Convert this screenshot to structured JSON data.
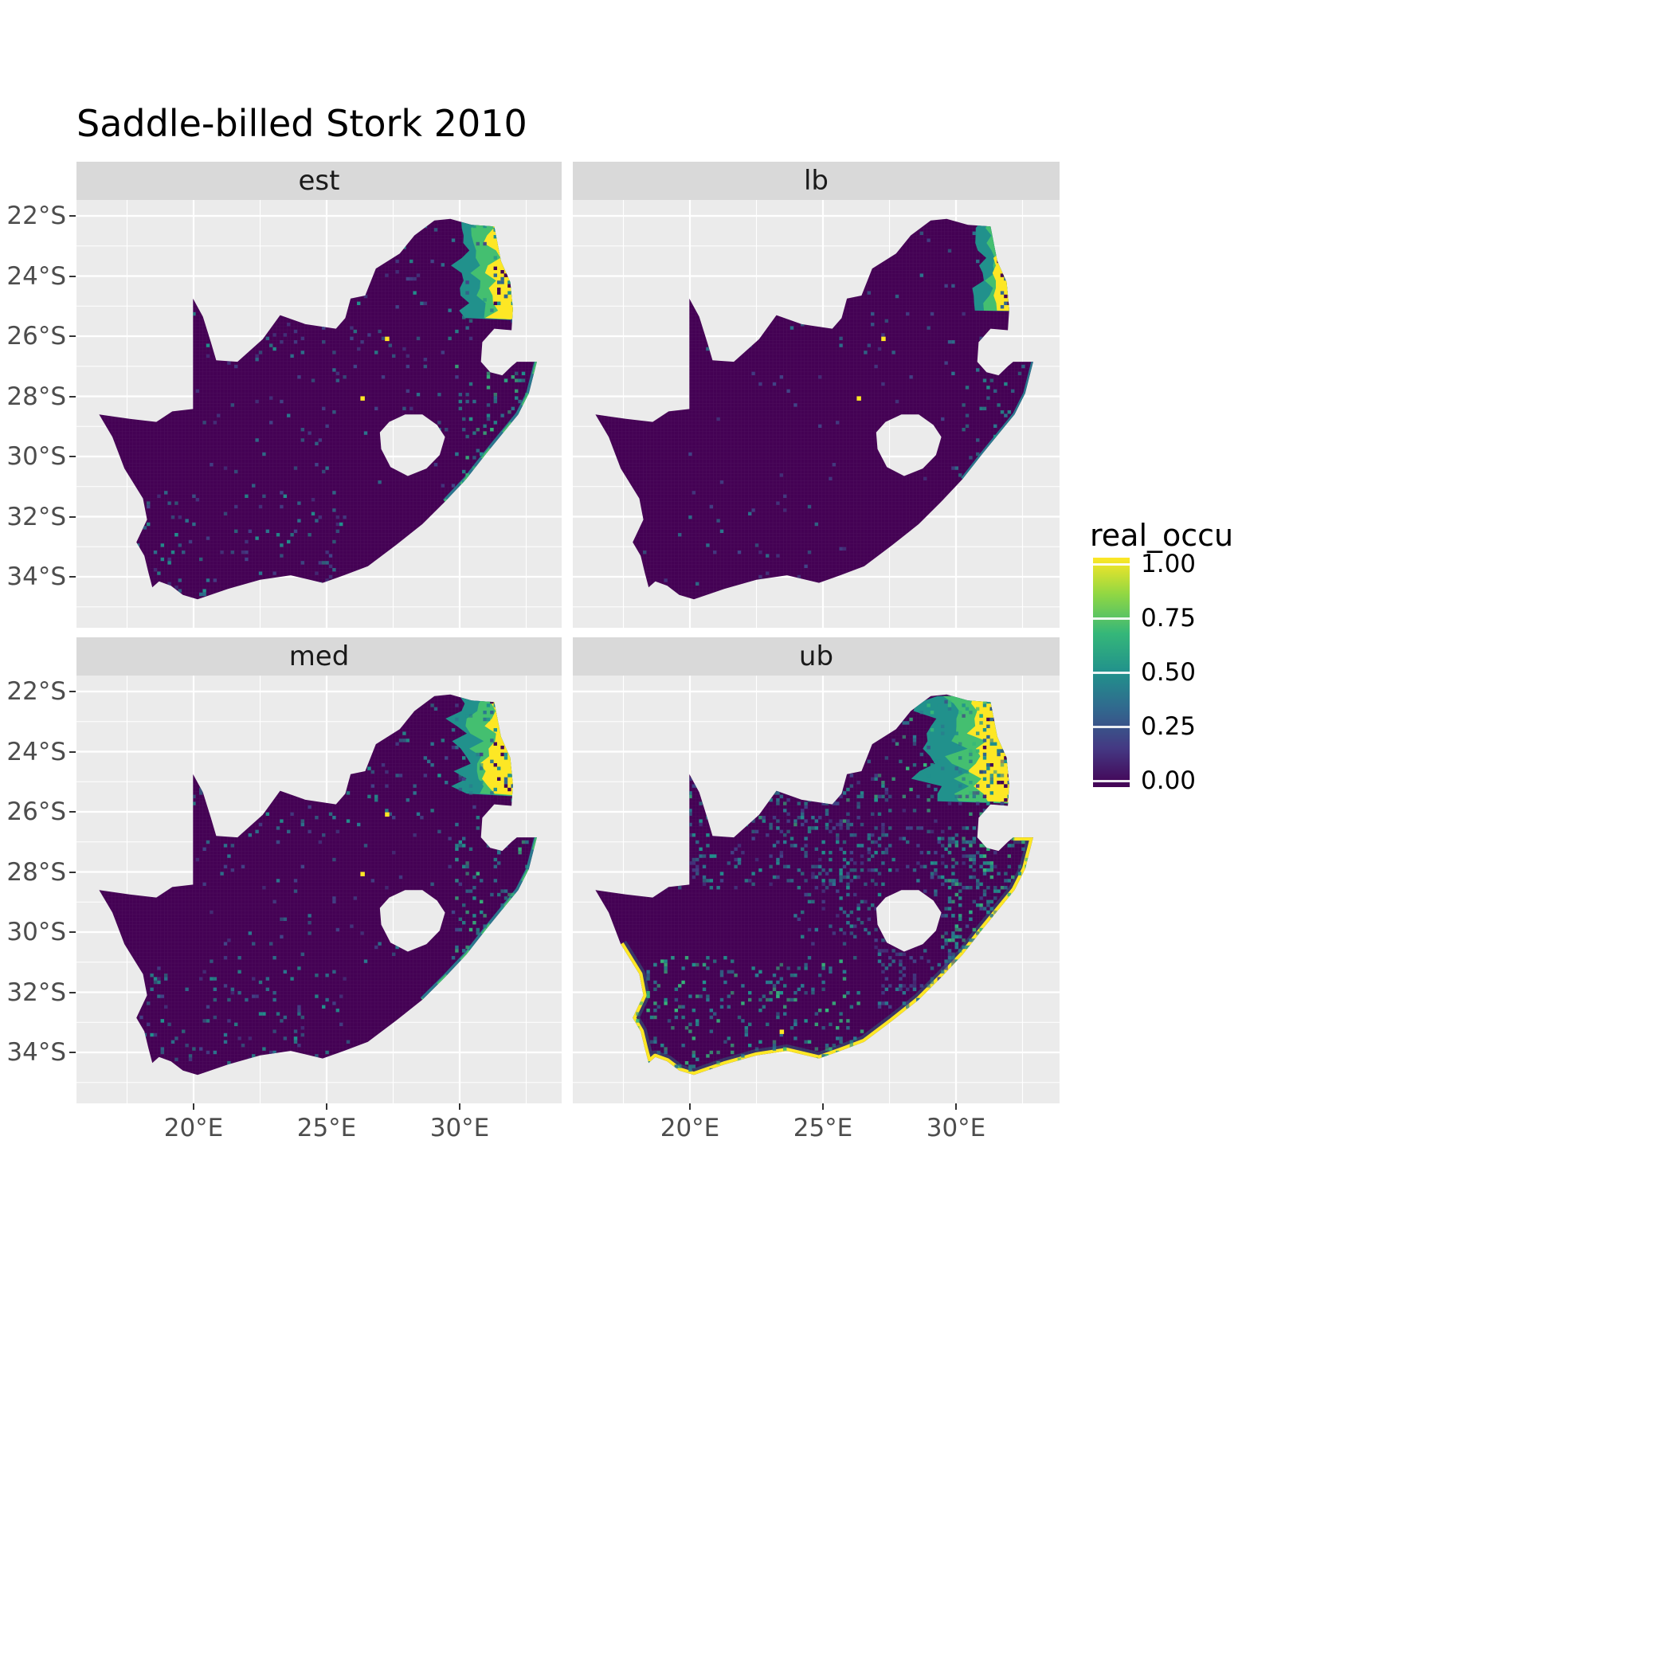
{
  "title": "Saddle-billed Stork 2010",
  "chart_data": {
    "type": "heatmap",
    "title": "Saddle-billed Stork 2010",
    "subtitle": "",
    "region": "South Africa (Lesotho shown as hole, Eswatini notch on east)",
    "value_variable": "real_occu",
    "value_range": [
      0,
      1
    ],
    "palette": "viridis",
    "palette_colors": {
      "0.00": "#440154",
      "0.25": "#3b528b",
      "0.50": "#21918c",
      "0.75": "#5ec962",
      "1.00": "#fde725"
    },
    "facets": [
      {
        "key": "est",
        "label": "est"
      },
      {
        "key": "lb",
        "label": "lb"
      },
      {
        "key": "med",
        "label": "med"
      },
      {
        "key": "ub",
        "label": "ub"
      }
    ],
    "axes": {
      "x_ticks": [
        "20°E",
        "25°E",
        "30°E"
      ],
      "x_values": [
        20,
        25,
        30
      ],
      "x_range_deg_east": [
        15.6,
        33.8
      ],
      "y_ticks": [
        "22°S",
        "24°S",
        "26°S",
        "28°S",
        "30°S",
        "32°S",
        "34°S"
      ],
      "y_values": [
        -22,
        -24,
        -26,
        -28,
        -30,
        -32,
        -34
      ],
      "y_range_deg_lat": [
        -21.5,
        -35.6
      ],
      "grid": "white major and minor gridlines on grey panel"
    },
    "legend": {
      "title": "real_occu",
      "ticks": [
        "1.00",
        "0.75",
        "0.50",
        "0.25",
        "0.00"
      ],
      "values": [
        1.0,
        0.75,
        0.5,
        0.25,
        0.0
      ],
      "position": "right"
    },
    "facet_summaries": {
      "est": "Estimated occupancy ~0 (dark purple) over most of South Africa; high values 0.5-1.0 along the north-eastern lowveld border (~30-32.5°E, 22.2-25.5°S) and a narrow moderate strip along the KwaZulu-Natal coast (~27-31°S); sparse low-moderate speckle in the north and along the south-western coast; isolated high cells near 27.2°E 26.1°S and 26.4°E 28.1°S.",
      "lb": "Lower bound: same spatial pattern but weaker; high band confined to extreme north-east edge (~31.5-32.1°E); very sparse speckle elsewhere.",
      "med": "Median: similar to estimate; strong yellow band in the north-east, teal coastal strip extending to ~32°S, moderate scattered speckle inland and on the south coast.",
      "ub": "Upper bound: widest high band in the north-east (from ~28.9°E); moderate (0.25-0.5) teal speckle across much of the northern and central interior and along the entire south and east coast, which carries a thin yellow (~1.0) coastal fringe.",
      "lesotho": "Lesotho is masked (no data, panel background)."
    },
    "south_africa_outline": [
      [
        16.45,
        -28.6
      ],
      [
        17.6,
        -28.75
      ],
      [
        18.6,
        -28.85
      ],
      [
        19.2,
        -28.5
      ],
      [
        19.98,
        -28.42
      ],
      [
        19.98,
        -24.75
      ],
      [
        20.35,
        -25.35
      ],
      [
        20.65,
        -26.2
      ],
      [
        20.85,
        -26.8
      ],
      [
        21.65,
        -26.85
      ],
      [
        22.6,
        -26.1
      ],
      [
        23.25,
        -25.3
      ],
      [
        24.2,
        -25.6
      ],
      [
        25.35,
        -25.75
      ],
      [
        25.7,
        -25.4
      ],
      [
        25.9,
        -24.75
      ],
      [
        26.45,
        -24.65
      ],
      [
        26.85,
        -23.75
      ],
      [
        27.75,
        -23.25
      ],
      [
        28.3,
        -22.65
      ],
      [
        29.05,
        -22.15
      ],
      [
        29.65,
        -22.1
      ],
      [
        30.45,
        -22.3
      ],
      [
        31.3,
        -22.35
      ],
      [
        31.55,
        -23.5
      ],
      [
        31.9,
        -24.2
      ],
      [
        32.0,
        -25.1
      ],
      [
        31.95,
        -25.8
      ],
      [
        31.3,
        -25.75
      ],
      [
        30.85,
        -26.2
      ],
      [
        30.8,
        -26.85
      ],
      [
        31.15,
        -27.2
      ],
      [
        31.6,
        -27.3
      ],
      [
        31.95,
        -27.0
      ],
      [
        32.15,
        -26.85
      ],
      [
        32.9,
        -26.85
      ],
      [
        32.6,
        -27.9
      ],
      [
        32.2,
        -28.6
      ],
      [
        31.6,
        -29.25
      ],
      [
        31.0,
        -29.9
      ],
      [
        30.25,
        -30.75
      ],
      [
        29.45,
        -31.5
      ],
      [
        28.6,
        -32.25
      ],
      [
        27.6,
        -32.95
      ],
      [
        26.55,
        -33.65
      ],
      [
        25.65,
        -33.95
      ],
      [
        24.85,
        -34.2
      ],
      [
        23.65,
        -33.95
      ],
      [
        22.5,
        -34.1
      ],
      [
        21.3,
        -34.4
      ],
      [
        20.15,
        -34.75
      ],
      [
        19.6,
        -34.6
      ],
      [
        19.15,
        -34.3
      ],
      [
        18.7,
        -34.15
      ],
      [
        18.45,
        -34.35
      ],
      [
        18.3,
        -33.85
      ],
      [
        18.15,
        -33.3
      ],
      [
        17.85,
        -32.85
      ],
      [
        18.25,
        -32.1
      ],
      [
        18.1,
        -31.4
      ],
      [
        17.4,
        -30.4
      ],
      [
        16.95,
        -29.35
      ]
    ],
    "lesotho_hole": [
      [
        27.0,
        -29.2
      ],
      [
        27.35,
        -28.85
      ],
      [
        27.95,
        -28.6
      ],
      [
        28.6,
        -28.6
      ],
      [
        29.15,
        -28.95
      ],
      [
        29.45,
        -29.35
      ],
      [
        29.25,
        -29.95
      ],
      [
        28.75,
        -30.4
      ],
      [
        28.05,
        -30.65
      ],
      [
        27.4,
        -30.35
      ],
      [
        27.05,
        -29.75
      ]
    ],
    "facet_layers": {
      "est": {
        "seed": 11,
        "band": {
          "top": -22.15,
          "bottom": -25.55,
          "n_dark": 50,
          "layers": [
            {
              "left": 30.05,
              "color": "#21918c",
              "jit": 0.45
            },
            {
              "left": 30.7,
              "color": "#44bf70",
              "jit": 0.4
            },
            {
              "left": 31.2,
              "color": "#fde725",
              "jit": 0.35
            }
          ]
        },
        "coast": {
          "seg": [
            35,
            41
          ],
          "color": "#2a788e",
          "w": 7,
          "dash": true
        },
        "speckles": [
          {
            "lon": [
              19.8,
              31.4
            ],
            "lat": [
              -26.6,
              -22.3
            ],
            "n": 150,
            "colors": [
              "#2a788e",
              "#21918c",
              "#414487",
              "#414487"
            ]
          },
          {
            "lon": [
              20.0,
              30.0
            ],
            "lat": [
              -31.0,
              -26.6
            ],
            "n": 70,
            "colors": [
              "#414487",
              "#2a788e"
            ]
          },
          {
            "lon": [
              17.9,
              25.8
            ],
            "lat": [
              -34.7,
              -31.2
            ],
            "n": 110,
            "colors": [
              "#2a788e",
              "#21918c",
              "#414487"
            ]
          },
          {
            "lon": [
              29.8,
              32.6
            ],
            "lat": [
              -31.0,
              -26.9
            ],
            "n": 90,
            "colors": [
              "#21918c",
              "#2a788e",
              "#35b779"
            ]
          }
        ],
        "dots": [
          [
            27.2,
            -26.1
          ],
          [
            26.35,
            -28.05
          ]
        ]
      },
      "lb": {
        "seed": 22,
        "band": {
          "top": -22.15,
          "bottom": -25.2,
          "n_dark": 35,
          "layers": [
            {
              "left": 30.9,
              "color": "#21918c",
              "jit": 0.3
            },
            {
              "left": 31.3,
              "color": "#44bf70",
              "jit": 0.28
            },
            {
              "left": 31.6,
              "color": "#fde725",
              "jit": 0.25
            }
          ]
        },
        "coast": {
          "seg": [
            35,
            40
          ],
          "color": "#2a788e",
          "w": 5,
          "dash": false
        },
        "speckles": [
          {
            "lon": [
              19.8,
              31.4
            ],
            "lat": [
              -26.6,
              -22.3
            ],
            "n": 60,
            "colors": [
              "#31688e",
              "#2a788e",
              "#414487"
            ]
          },
          {
            "lon": [
              20.0,
              30.0
            ],
            "lat": [
              -31.0,
              -26.6
            ],
            "n": 25,
            "colors": [
              "#414487"
            ]
          },
          {
            "lon": [
              17.9,
              25.8
            ],
            "lat": [
              -34.7,
              -31.2
            ],
            "n": 35,
            "colors": [
              "#2a788e",
              "#414487"
            ]
          },
          {
            "lon": [
              29.8,
              32.6
            ],
            "lat": [
              -31.0,
              -26.9
            ],
            "n": 45,
            "colors": [
              "#21918c",
              "#2a788e"
            ]
          }
        ],
        "dots": [
          [
            27.2,
            -26.1
          ],
          [
            26.35,
            -28.05
          ]
        ]
      },
      "med": {
        "seed": 33,
        "band": {
          "top": -22.15,
          "bottom": -25.6,
          "n_dark": 55,
          "layers": [
            {
              "left": 29.95,
              "color": "#21918c",
              "jit": 0.5
            },
            {
              "left": 30.6,
              "color": "#44bf70",
              "jit": 0.45
            },
            {
              "left": 31.05,
              "color": "#fde725",
              "jit": 0.4
            }
          ]
        },
        "coast": {
          "seg": [
            35,
            42
          ],
          "color": "#2a788e",
          "w": 7,
          "dash": true
        },
        "speckles": [
          {
            "lon": [
              19.8,
              31.4
            ],
            "lat": [
              -26.6,
              -22.3
            ],
            "n": 170,
            "colors": [
              "#2a788e",
              "#21918c",
              "#414487"
            ]
          },
          {
            "lon": [
              20.0,
              30.0
            ],
            "lat": [
              -31.0,
              -26.6
            ],
            "n": 80,
            "colors": [
              "#414487",
              "#2a788e"
            ]
          },
          {
            "lon": [
              17.9,
              25.8
            ],
            "lat": [
              -34.7,
              -31.2
            ],
            "n": 120,
            "colors": [
              "#2a788e",
              "#21918c",
              "#414487"
            ]
          },
          {
            "lon": [
              29.8,
              32.6
            ],
            "lat": [
              -31.0,
              -26.9
            ],
            "n": 100,
            "colors": [
              "#21918c",
              "#35b779",
              "#2a788e"
            ]
          }
        ],
        "dots": [
          [
            27.2,
            -26.1
          ],
          [
            26.35,
            -28.05
          ]
        ]
      },
      "ub": {
        "seed": 44,
        "band": {
          "top": -22.15,
          "bottom": -25.8,
          "n_dark": 70,
          "layers": [
            {
              "left": 28.9,
              "color": "#21918c",
              "jit": 0.6
            },
            {
              "left": 30.0,
              "color": "#44bf70",
              "jit": 0.5
            },
            {
              "left": 30.85,
              "color": "#fde725",
              "jit": 0.45
            }
          ]
        },
        "coast": {
          "seg": [
            34,
            60
          ],
          "color": "#fde725",
          "w": 8,
          "dash": false,
          "under": {
            "color": "#21918c",
            "w": 16,
            "opacity": 0.35
          }
        },
        "speckles": [
          {
            "lon": [
              19.5,
              32.0
            ],
            "lat": [
              -26.5,
              -22.3
            ],
            "n": 320,
            "colors": [
              "#21918c",
              "#2a788e",
              "#35b779",
              "#414487"
            ]
          },
          {
            "lon": [
              18.8,
              27.5
            ],
            "lat": [
              -28.6,
              -24.8
            ],
            "n": 300,
            "colors": [
              "#21918c",
              "#2a788e",
              "#414487"
            ]
          },
          {
            "lon": [
              24.0,
              31.5
            ],
            "lat": [
              -30.5,
              -26.5
            ],
            "n": 240,
            "colors": [
              "#2a788e",
              "#21918c",
              "#414487"
            ]
          },
          {
            "lon": [
              17.8,
              26.5
            ],
            "lat": [
              -34.8,
              -30.8
            ],
            "n": 280,
            "colors": [
              "#2a788e",
              "#21918c",
              "#35b779"
            ]
          },
          {
            "lon": [
              29.5,
              32.7
            ],
            "lat": [
              -31.5,
              -26.9
            ],
            "n": 200,
            "colors": [
              "#21918c",
              "#35b779",
              "#2a788e"
            ]
          },
          {
            "lon": [
              27.0,
              30.0
            ],
            "lat": [
              -32.5,
              -30.5
            ],
            "n": 90,
            "colors": [
              "#2a788e",
              "#414487"
            ]
          }
        ],
        "dots": [
          [
            23.4,
            -33.3
          ]
        ]
      }
    }
  }
}
